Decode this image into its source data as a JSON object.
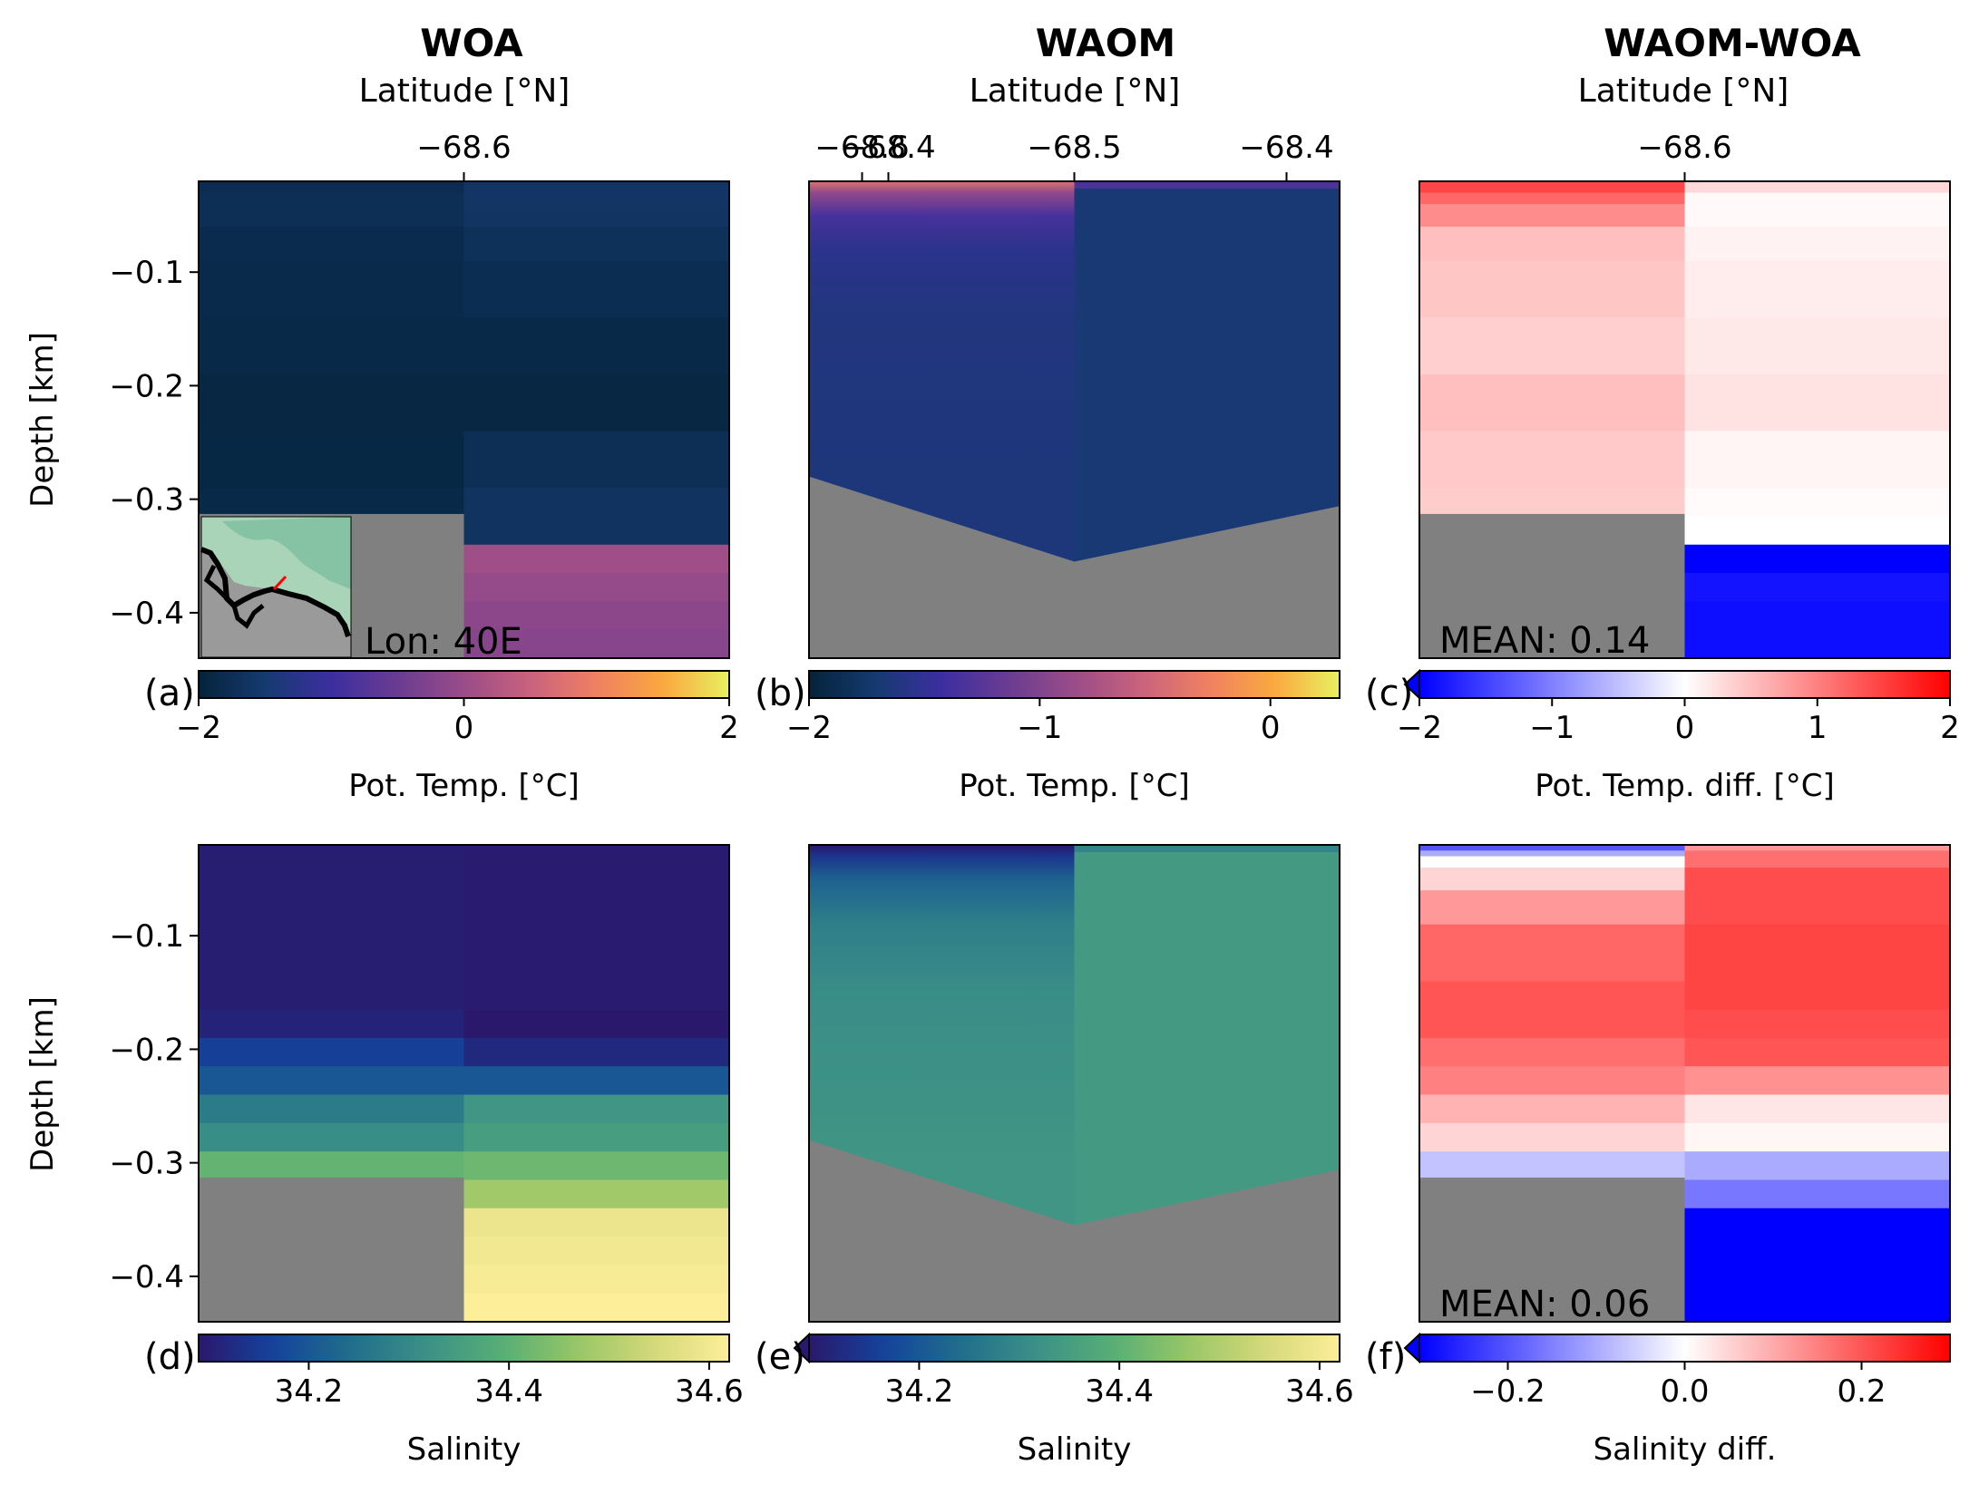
{
  "figure": {
    "column_titles": [
      "WOA",
      "WAOM",
      "WAOM-WOA"
    ],
    "top_axis_label": "Latitude [°N]",
    "y_axis_label": "Depth [km]",
    "inset_label": "Lon: 40E"
  },
  "chart_data": [
    {
      "id": "a",
      "panel_label": "(a)",
      "type": "heatmap",
      "source": "WOA",
      "variable": "Pot. Temp.",
      "xlim": [
        -68.725,
        -68.475
      ],
      "ylim": [
        -0.44,
        -0.02
      ],
      "top_ticks": [
        -68.6,
        -68.4
      ],
      "top_tick_labels": [
        "−68.6",
        "−68.4"
      ],
      "y_ticks": [
        -0.1,
        -0.2,
        -0.3,
        -0.4
      ],
      "y_tick_labels": [
        "−0.1",
        "−0.2",
        "−0.3",
        "−0.4"
      ],
      "columns": [
        {
          "x_range": [
            -68.725,
            -68.6
          ],
          "bottom": -0.313,
          "layers": [
            [
              -0.02,
              -0.03,
              -1.8
            ],
            [
              -0.03,
              -0.06,
              -1.75
            ],
            [
              -0.06,
              -0.09,
              -1.82
            ],
            [
              -0.09,
              -0.14,
              -1.84
            ],
            [
              -0.14,
              -0.19,
              -1.86
            ],
            [
              -0.19,
              -0.24,
              -1.92
            ],
            [
              -0.24,
              -0.29,
              -1.9
            ],
            [
              -0.29,
              -0.313,
              -1.88
            ]
          ]
        },
        {
          "x_range": [
            -68.6,
            -68.475
          ],
          "bottom": -0.44,
          "layers": [
            [
              -0.02,
              -0.04,
              -1.6
            ],
            [
              -0.04,
              -0.06,
              -1.62
            ],
            [
              -0.06,
              -0.09,
              -1.7
            ],
            [
              -0.09,
              -0.14,
              -1.78
            ],
            [
              -0.14,
              -0.19,
              -1.86
            ],
            [
              -0.19,
              -0.24,
              -1.92
            ],
            [
              -0.24,
              -0.29,
              -1.75
            ],
            [
              -0.29,
              -0.34,
              -1.65
            ],
            [
              -0.34,
              -0.365,
              0.05
            ],
            [
              -0.365,
              -0.39,
              -0.05
            ],
            [
              -0.39,
              -0.415,
              -0.15
            ],
            [
              -0.415,
              -0.44,
              -0.2
            ]
          ]
        }
      ],
      "colorbar": {
        "label": "Pot. Temp. [°C]",
        "range": [
          -2,
          2
        ],
        "ticks": [
          -2,
          0,
          2
        ],
        "tick_labels": [
          "−2",
          "0",
          "2"
        ],
        "cmap": "thermal",
        "extend": "none"
      }
    },
    {
      "id": "b",
      "panel_label": "(b)",
      "type": "heatmap",
      "source": "WAOM",
      "variable": "Pot. Temp.",
      "xlim": [
        -68.625,
        -68.375
      ],
      "ylim": [
        -0.44,
        -0.02
      ],
      "top_ticks": [
        -68.6,
        -68.5,
        -68.4
      ],
      "top_tick_labels": [
        "−68.6",
        "−68.5",
        "−68.4"
      ],
      "y_ticks": [],
      "y_tick_labels": [],
      "surface_gradient": [
        [
          -0.02,
          -0.4
        ],
        [
          -0.03,
          -0.9
        ],
        [
          -0.05,
          -1.35
        ],
        [
          -0.08,
          -1.55
        ],
        [
          -0.14,
          -1.62
        ],
        [
          -0.3,
          -1.65
        ]
      ],
      "right_column_value": -1.68,
      "bathymetry": [
        [
          -68.625,
          -0.28
        ],
        [
          -68.5,
          -0.355
        ],
        [
          -68.375,
          -0.306
        ]
      ],
      "colorbar": {
        "label": "Pot. Temp. [°C]",
        "range": [
          -2,
          0.3
        ],
        "ticks": [
          -2,
          -1,
          0
        ],
        "tick_labels": [
          "−2",
          "−1",
          "0"
        ],
        "cmap": "thermal",
        "extend": "none"
      }
    },
    {
      "id": "c",
      "panel_label": "(c)",
      "type": "heatmap",
      "source": "WAOM-WOA",
      "variable": "Pot. Temp. diff.",
      "xlim": [
        -68.725,
        -68.475
      ],
      "ylim": [
        -0.44,
        -0.02
      ],
      "top_ticks": [
        -68.6,
        -68.4
      ],
      "top_tick_labels": [
        "−68.6",
        "−68.4"
      ],
      "y_ticks": [],
      "y_tick_labels": [],
      "annotation": "MEAN: 0.14",
      "columns": [
        {
          "x_range": [
            -68.725,
            -68.6
          ],
          "bottom": -0.313,
          "layers": [
            [
              -0.02,
              -0.03,
              1.45
            ],
            [
              -0.03,
              -0.04,
              1.2
            ],
            [
              -0.04,
              -0.06,
              0.9
            ],
            [
              -0.06,
              -0.09,
              0.5
            ],
            [
              -0.09,
              -0.14,
              0.45
            ],
            [
              -0.14,
              -0.19,
              0.38
            ],
            [
              -0.19,
              -0.24,
              0.5
            ],
            [
              -0.24,
              -0.29,
              0.42
            ],
            [
              -0.29,
              -0.313,
              0.4
            ]
          ]
        },
        {
          "x_range": [
            -68.6,
            -68.475
          ],
          "bottom": -0.44,
          "layers": [
            [
              -0.02,
              -0.03,
              0.3
            ],
            [
              -0.03,
              -0.06,
              0.05
            ],
            [
              -0.06,
              -0.09,
              0.1
            ],
            [
              -0.09,
              -0.14,
              0.15
            ],
            [
              -0.14,
              -0.19,
              0.18
            ],
            [
              -0.19,
              -0.24,
              0.22
            ],
            [
              -0.24,
              -0.29,
              0.08
            ],
            [
              -0.29,
              -0.315,
              0.03
            ],
            [
              -0.315,
              -0.34,
              0.0
            ],
            [
              -0.34,
              -0.365,
              -2.0
            ],
            [
              -0.365,
              -0.39,
              -1.85
            ],
            [
              -0.39,
              -0.415,
              -1.9
            ],
            [
              -0.415,
              -0.44,
              -1.9
            ]
          ]
        }
      ],
      "colorbar": {
        "label": "Pot. Temp. diff. [°C]",
        "range": [
          -2,
          2
        ],
        "ticks": [
          -2,
          -1,
          0,
          1,
          2
        ],
        "tick_labels": [
          "−2",
          "−1",
          "0",
          "1",
          "2"
        ],
        "cmap": "bwr",
        "extend": "min"
      }
    },
    {
      "id": "d",
      "panel_label": "(d)",
      "type": "heatmap",
      "source": "WOA",
      "variable": "Salinity",
      "xlim": [
        -68.725,
        -68.475
      ],
      "ylim": [
        -0.44,
        -0.02
      ],
      "y_ticks": [
        -0.1,
        -0.2,
        -0.3,
        -0.4
      ],
      "y_tick_labels": [
        "−0.1",
        "−0.2",
        "−0.3",
        "−0.4"
      ],
      "columns": [
        {
          "x_range": [
            -68.725,
            -68.6
          ],
          "bottom": -0.313,
          "layers": [
            [
              -0.02,
              -0.165,
              34.1
            ],
            [
              -0.165,
              -0.19,
              34.11
            ],
            [
              -0.19,
              -0.215,
              34.16
            ],
            [
              -0.215,
              -0.24,
              34.2
            ],
            [
              -0.24,
              -0.265,
              34.27
            ],
            [
              -0.265,
              -0.29,
              34.31
            ],
            [
              -0.29,
              -0.313,
              34.41
            ]
          ]
        },
        {
          "x_range": [
            -68.6,
            -68.475
          ],
          "bottom": -0.44,
          "layers": [
            [
              -0.02,
              -0.165,
              34.095
            ],
            [
              -0.165,
              -0.19,
              34.09
            ],
            [
              -0.19,
              -0.215,
              34.12
            ],
            [
              -0.215,
              -0.24,
              34.2
            ],
            [
              -0.24,
              -0.265,
              34.33
            ],
            [
              -0.265,
              -0.29,
              34.35
            ],
            [
              -0.29,
              -0.315,
              34.42
            ],
            [
              -0.315,
              -0.34,
              34.48
            ],
            [
              -0.34,
              -0.365,
              34.59
            ],
            [
              -0.365,
              -0.39,
              34.6
            ],
            [
              -0.39,
              -0.415,
              34.61
            ],
            [
              -0.415,
              -0.44,
              34.62
            ]
          ]
        }
      ],
      "colorbar": {
        "label": "Salinity",
        "range": [
          34.09,
          34.62
        ],
        "ticks": [
          34.2,
          34.4,
          34.6
        ],
        "tick_labels": [
          "34.2",
          "34.4",
          "34.6"
        ],
        "cmap": "haline",
        "extend": "none"
      }
    },
    {
      "id": "e",
      "panel_label": "(e)",
      "type": "heatmap",
      "source": "WAOM",
      "variable": "Salinity",
      "xlim": [
        -68.625,
        -68.375
      ],
      "ylim": [
        -0.44,
        -0.02
      ],
      "y_ticks": [],
      "y_tick_labels": [],
      "surface_gradient": [
        [
          -0.02,
          34.09
        ],
        [
          -0.03,
          34.14
        ],
        [
          -0.05,
          34.22
        ],
        [
          -0.09,
          34.28
        ],
        [
          -0.15,
          34.31
        ],
        [
          -0.3,
          34.33
        ]
      ],
      "right_column_value": 34.34,
      "bathymetry": [
        [
          -68.625,
          -0.28
        ],
        [
          -68.5,
          -0.355
        ],
        [
          -68.375,
          -0.306
        ]
      ],
      "colorbar": {
        "label": "Salinity",
        "range": [
          34.09,
          34.62
        ],
        "ticks": [
          34.2,
          34.4,
          34.6
        ],
        "tick_labels": [
          "34.2",
          "34.4",
          "34.6"
        ],
        "cmap": "haline",
        "extend": "min"
      }
    },
    {
      "id": "f",
      "panel_label": "(f)",
      "type": "heatmap",
      "source": "WAOM-WOA",
      "variable": "Salinity diff.",
      "xlim": [
        -68.725,
        -68.475
      ],
      "ylim": [
        -0.44,
        -0.02
      ],
      "y_ticks": [],
      "y_tick_labels": [],
      "annotation": "MEAN: 0.06",
      "columns": [
        {
          "x_range": [
            -68.725,
            -68.6
          ],
          "bottom": -0.313,
          "layers": [
            [
              -0.02,
              -0.025,
              -0.2
            ],
            [
              -0.025,
              -0.03,
              -0.1
            ],
            [
              -0.03,
              -0.04,
              0.0
            ],
            [
              -0.04,
              -0.06,
              0.05
            ],
            [
              -0.06,
              -0.09,
              0.12
            ],
            [
              -0.09,
              -0.14,
              0.18
            ],
            [
              -0.14,
              -0.165,
              0.2
            ],
            [
              -0.165,
              -0.19,
              0.2
            ],
            [
              -0.19,
              -0.215,
              0.17
            ],
            [
              -0.215,
              -0.24,
              0.15
            ],
            [
              -0.24,
              -0.265,
              0.09
            ],
            [
              -0.265,
              -0.29,
              0.05
            ],
            [
              -0.29,
              -0.313,
              -0.07
            ]
          ]
        },
        {
          "x_range": [
            -68.6,
            -68.475
          ],
          "bottom": -0.44,
          "layers": [
            [
              -0.02,
              -0.025,
              0.12
            ],
            [
              -0.025,
              -0.04,
              0.17
            ],
            [
              -0.04,
              -0.09,
              0.21
            ],
            [
              -0.09,
              -0.14,
              0.22
            ],
            [
              -0.14,
              -0.165,
              0.22
            ],
            [
              -0.165,
              -0.19,
              0.21
            ],
            [
              -0.19,
              -0.215,
              0.2
            ],
            [
              -0.215,
              -0.24,
              0.13
            ],
            [
              -0.24,
              -0.265,
              0.03
            ],
            [
              -0.265,
              -0.29,
              0.01
            ],
            [
              -0.29,
              -0.315,
              -0.1
            ],
            [
              -0.315,
              -0.34,
              -0.16
            ],
            [
              -0.34,
              -0.44,
              -0.3
            ]
          ]
        }
      ],
      "colorbar": {
        "label": "Salinity diff.",
        "range": [
          -0.3,
          0.3
        ],
        "ticks": [
          -0.2,
          0.0,
          0.2
        ],
        "tick_labels": [
          "−0.2",
          "0.0",
          "0.2"
        ],
        "cmap": "bwr",
        "extend": "min"
      }
    }
  ],
  "colors": {
    "land": "#808080",
    "inset_land": "#9a9a9a"
  }
}
